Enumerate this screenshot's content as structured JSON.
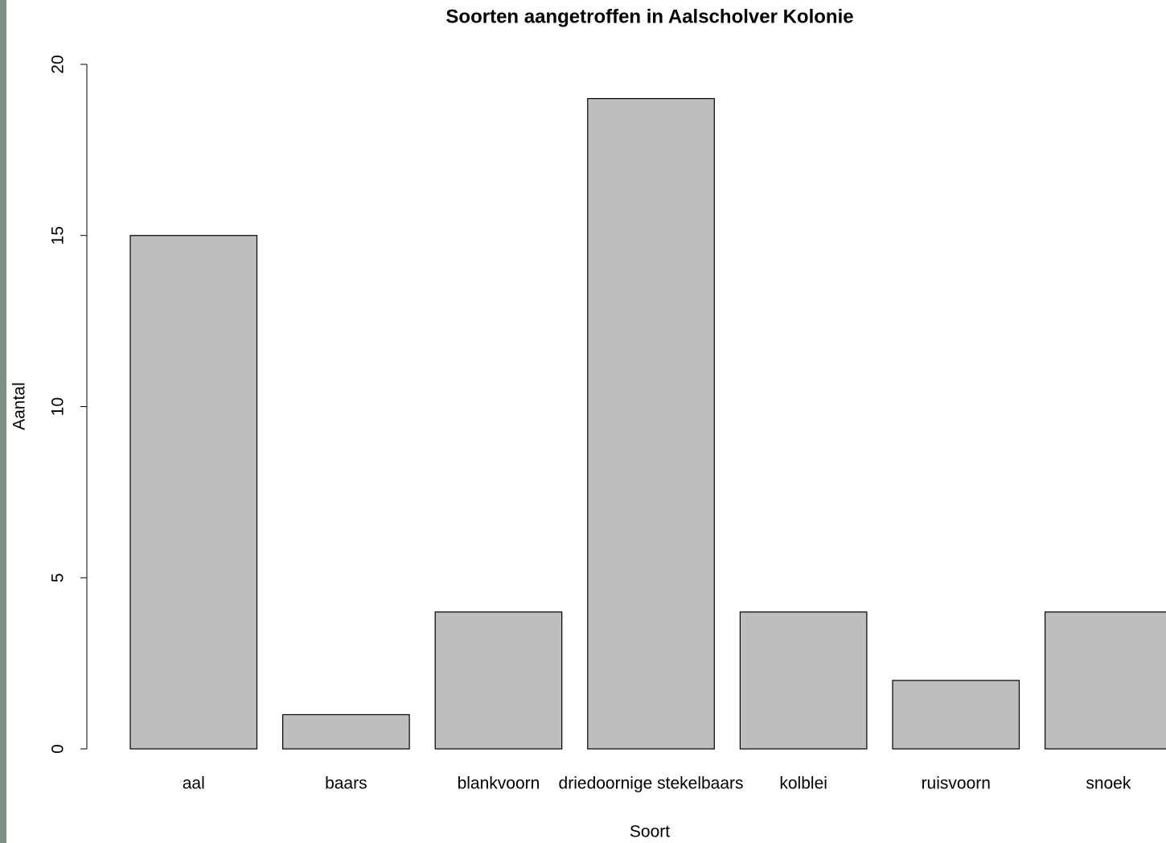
{
  "chart_data": {
    "type": "bar",
    "title": "Soorten aangetroffen in Aalscholver Kolonie",
    "x_label": "Soort",
    "y_label": "Aantal",
    "categories": [
      "aal",
      "baars",
      "blankvoorn",
      "driedoornige stekelbaars",
      "kolblei",
      "ruisvoorn",
      "snoek"
    ],
    "values": [
      15,
      1,
      4,
      19,
      4,
      2,
      4
    ],
    "color": "#bebebe",
    "ylim": [
      0,
      20
    ],
    "yticks": [
      0,
      5,
      10,
      15,
      20
    ],
    "grid": false
  }
}
